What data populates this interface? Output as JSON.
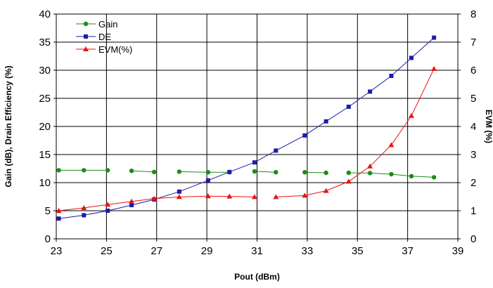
{
  "chart_data": {
    "type": "line",
    "title": "",
    "xlabel": "Pout (dBm)",
    "ylabel": "Gain (dB), Drain Efficiency (%)",
    "y2label": "EVM (%)",
    "xlim": [
      23,
      39
    ],
    "ylim": [
      0,
      40
    ],
    "y2lim": [
      0,
      8
    ],
    "xticks": [
      "23",
      "25",
      "27",
      "29",
      "31",
      "33",
      "35",
      "37",
      "39"
    ],
    "yticks": [
      "0",
      "5",
      "10",
      "15",
      "20",
      "25",
      "30",
      "35",
      "40"
    ],
    "y2ticks": [
      "0",
      "1",
      "2",
      "3",
      "4",
      "5",
      "6",
      "7",
      "8"
    ],
    "grid": true,
    "legend_position": "top-left",
    "series": [
      {
        "name": "Gain",
        "axis": "left",
        "color": "#1a8c1a",
        "marker": "circle",
        "segments": [
          [
            [
              23.1,
              12.2
            ],
            [
              24.1,
              12.2
            ],
            [
              25.05,
              12.2
            ]
          ],
          [
            [
              26.0,
              12.1
            ],
            [
              26.9,
              11.9
            ]
          ],
          [
            [
              27.9,
              11.95
            ],
            [
              29.05,
              11.85
            ],
            [
              29.9,
              11.85
            ]
          ],
          [
            [
              30.9,
              12.0
            ],
            [
              31.75,
              11.85
            ]
          ],
          [
            [
              32.9,
              11.85
            ],
            [
              33.75,
              11.75
            ]
          ],
          [
            [
              34.65,
              11.75
            ],
            [
              35.5,
              11.7
            ],
            [
              36.35,
              11.5
            ],
            [
              37.15,
              11.15
            ],
            [
              38.05,
              10.95
            ]
          ]
        ]
      },
      {
        "name": "DE",
        "axis": "left",
        "color": "#1c1ca8",
        "marker": "square",
        "segments": [
          [
            [
              23.1,
              3.6
            ],
            [
              24.1,
              4.2
            ],
            [
              25.05,
              5.0
            ],
            [
              26.0,
              6.0
            ],
            [
              26.9,
              7.0
            ],
            [
              27.9,
              8.4
            ],
            [
              29.05,
              10.4
            ],
            [
              29.9,
              11.9
            ],
            [
              30.9,
              13.6
            ],
            [
              31.75,
              15.7
            ],
            [
              32.9,
              18.4
            ],
            [
              33.75,
              20.9
            ],
            [
              34.65,
              23.5
            ],
            [
              35.5,
              26.2
            ],
            [
              36.35,
              29.0
            ],
            [
              37.15,
              32.2
            ],
            [
              38.05,
              35.8
            ]
          ]
        ]
      },
      {
        "name": "EVM(%)",
        "axis": "right",
        "color": "#ee1111",
        "marker": "triangle",
        "segments": [
          [
            [
              23.1,
              1.0
            ],
            [
              24.1,
              1.1
            ],
            [
              25.05,
              1.22
            ],
            [
              26.0,
              1.33
            ],
            [
              26.9,
              1.43
            ],
            [
              27.9,
              1.49
            ],
            [
              29.05,
              1.52
            ],
            [
              29.9,
              1.51
            ],
            [
              30.9,
              1.49
            ]
          ],
          [
            [
              31.75,
              1.49
            ],
            [
              32.9,
              1.54
            ],
            [
              33.75,
              1.71
            ],
            [
              34.65,
              2.04
            ],
            [
              35.5,
              2.58
            ],
            [
              36.35,
              3.34
            ],
            [
              37.15,
              4.38
            ],
            [
              38.05,
              6.05
            ]
          ]
        ]
      }
    ]
  }
}
